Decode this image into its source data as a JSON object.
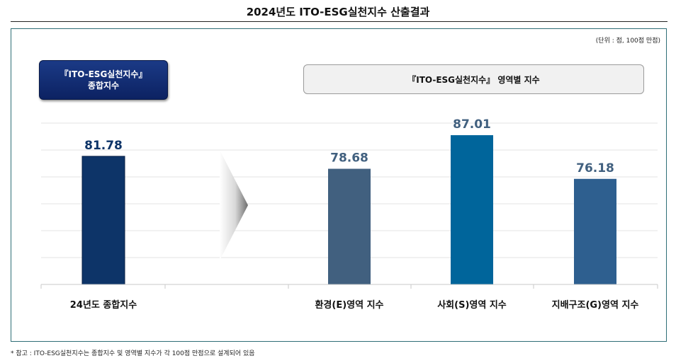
{
  "title": "2024년도 ITO-ESG실천지수 산출결과",
  "unit_note": "(단위 : 점, 100점 만점)",
  "total_badge": {
    "line1": "『ITO-ESG실천지수』",
    "line2": "종합지수"
  },
  "domain_badge": "『ITO-ESG실천지수』 영역별 지수",
  "footnote": "* 참고 : ITO-ESG실천지수는 종합지수 및 영역별 지수가 각 100점 만점으로 설계되어 있음",
  "chart_data": {
    "type": "bar",
    "categories": [
      "24년도 종합지수",
      "환경(E)영역 지수",
      "사회(S)영역 지수",
      "지배구조(G)영역 지수"
    ],
    "values": [
      81.78,
      78.68,
      87.01,
      76.18
    ],
    "value_labels": [
      "81.78",
      "78.68",
      "87.01",
      "76.18"
    ],
    "colors": [
      "#0d3468",
      "#41607f",
      "#00659b",
      "#2e5f8f"
    ],
    "label_colors": [
      "#0d3468",
      "#41607f",
      "#41607f",
      "#41607f"
    ],
    "ylim": [
      50,
      90
    ],
    "grid": true,
    "xlabel": "",
    "ylabel": ""
  }
}
